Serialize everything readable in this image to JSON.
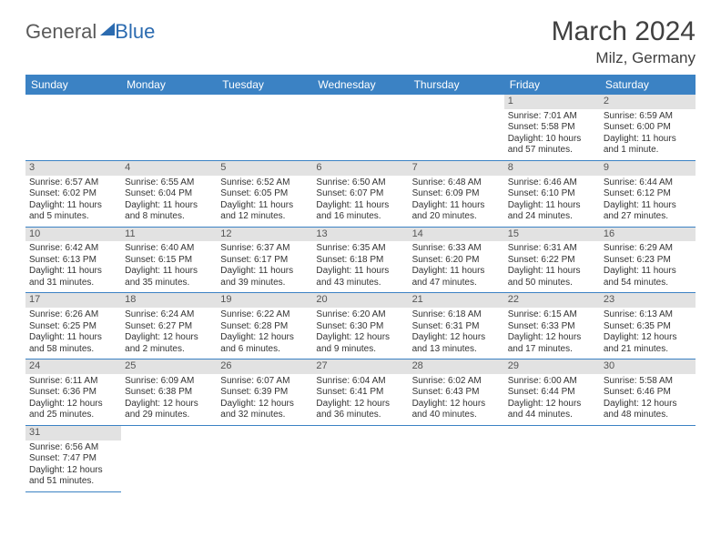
{
  "logo": {
    "part1": "General",
    "part2": "Blue"
  },
  "title": "March 2024",
  "subtitle": "Milz, Germany",
  "colors": {
    "header_bg": "#3b82c4",
    "header_text": "#ffffff",
    "daynum_bg": "#e2e2e2",
    "cell_border": "#3b82c4",
    "title_color": "#404040",
    "logo_gray": "#5a5a5a",
    "logo_blue": "#2b6bb0"
  },
  "days_of_week": [
    "Sunday",
    "Monday",
    "Tuesday",
    "Wednesday",
    "Thursday",
    "Friday",
    "Saturday"
  ],
  "first_weekday_index": 5,
  "num_days": 31,
  "cells": {
    "1": {
      "sunrise": "Sunrise: 7:01 AM",
      "sunset": "Sunset: 5:58 PM",
      "day1": "Daylight: 10 hours",
      "day2": "and 57 minutes."
    },
    "2": {
      "sunrise": "Sunrise: 6:59 AM",
      "sunset": "Sunset: 6:00 PM",
      "day1": "Daylight: 11 hours",
      "day2": "and 1 minute."
    },
    "3": {
      "sunrise": "Sunrise: 6:57 AM",
      "sunset": "Sunset: 6:02 PM",
      "day1": "Daylight: 11 hours",
      "day2": "and 5 minutes."
    },
    "4": {
      "sunrise": "Sunrise: 6:55 AM",
      "sunset": "Sunset: 6:04 PM",
      "day1": "Daylight: 11 hours",
      "day2": "and 8 minutes."
    },
    "5": {
      "sunrise": "Sunrise: 6:52 AM",
      "sunset": "Sunset: 6:05 PM",
      "day1": "Daylight: 11 hours",
      "day2": "and 12 minutes."
    },
    "6": {
      "sunrise": "Sunrise: 6:50 AM",
      "sunset": "Sunset: 6:07 PM",
      "day1": "Daylight: 11 hours",
      "day2": "and 16 minutes."
    },
    "7": {
      "sunrise": "Sunrise: 6:48 AM",
      "sunset": "Sunset: 6:09 PM",
      "day1": "Daylight: 11 hours",
      "day2": "and 20 minutes."
    },
    "8": {
      "sunrise": "Sunrise: 6:46 AM",
      "sunset": "Sunset: 6:10 PM",
      "day1": "Daylight: 11 hours",
      "day2": "and 24 minutes."
    },
    "9": {
      "sunrise": "Sunrise: 6:44 AM",
      "sunset": "Sunset: 6:12 PM",
      "day1": "Daylight: 11 hours",
      "day2": "and 27 minutes."
    },
    "10": {
      "sunrise": "Sunrise: 6:42 AM",
      "sunset": "Sunset: 6:13 PM",
      "day1": "Daylight: 11 hours",
      "day2": "and 31 minutes."
    },
    "11": {
      "sunrise": "Sunrise: 6:40 AM",
      "sunset": "Sunset: 6:15 PM",
      "day1": "Daylight: 11 hours",
      "day2": "and 35 minutes."
    },
    "12": {
      "sunrise": "Sunrise: 6:37 AM",
      "sunset": "Sunset: 6:17 PM",
      "day1": "Daylight: 11 hours",
      "day2": "and 39 minutes."
    },
    "13": {
      "sunrise": "Sunrise: 6:35 AM",
      "sunset": "Sunset: 6:18 PM",
      "day1": "Daylight: 11 hours",
      "day2": "and 43 minutes."
    },
    "14": {
      "sunrise": "Sunrise: 6:33 AM",
      "sunset": "Sunset: 6:20 PM",
      "day1": "Daylight: 11 hours",
      "day2": "and 47 minutes."
    },
    "15": {
      "sunrise": "Sunrise: 6:31 AM",
      "sunset": "Sunset: 6:22 PM",
      "day1": "Daylight: 11 hours",
      "day2": "and 50 minutes."
    },
    "16": {
      "sunrise": "Sunrise: 6:29 AM",
      "sunset": "Sunset: 6:23 PM",
      "day1": "Daylight: 11 hours",
      "day2": "and 54 minutes."
    },
    "17": {
      "sunrise": "Sunrise: 6:26 AM",
      "sunset": "Sunset: 6:25 PM",
      "day1": "Daylight: 11 hours",
      "day2": "and 58 minutes."
    },
    "18": {
      "sunrise": "Sunrise: 6:24 AM",
      "sunset": "Sunset: 6:27 PM",
      "day1": "Daylight: 12 hours",
      "day2": "and 2 minutes."
    },
    "19": {
      "sunrise": "Sunrise: 6:22 AM",
      "sunset": "Sunset: 6:28 PM",
      "day1": "Daylight: 12 hours",
      "day2": "and 6 minutes."
    },
    "20": {
      "sunrise": "Sunrise: 6:20 AM",
      "sunset": "Sunset: 6:30 PM",
      "day1": "Daylight: 12 hours",
      "day2": "and 9 minutes."
    },
    "21": {
      "sunrise": "Sunrise: 6:18 AM",
      "sunset": "Sunset: 6:31 PM",
      "day1": "Daylight: 12 hours",
      "day2": "and 13 minutes."
    },
    "22": {
      "sunrise": "Sunrise: 6:15 AM",
      "sunset": "Sunset: 6:33 PM",
      "day1": "Daylight: 12 hours",
      "day2": "and 17 minutes."
    },
    "23": {
      "sunrise": "Sunrise: 6:13 AM",
      "sunset": "Sunset: 6:35 PM",
      "day1": "Daylight: 12 hours",
      "day2": "and 21 minutes."
    },
    "24": {
      "sunrise": "Sunrise: 6:11 AM",
      "sunset": "Sunset: 6:36 PM",
      "day1": "Daylight: 12 hours",
      "day2": "and 25 minutes."
    },
    "25": {
      "sunrise": "Sunrise: 6:09 AM",
      "sunset": "Sunset: 6:38 PM",
      "day1": "Daylight: 12 hours",
      "day2": "and 29 minutes."
    },
    "26": {
      "sunrise": "Sunrise: 6:07 AM",
      "sunset": "Sunset: 6:39 PM",
      "day1": "Daylight: 12 hours",
      "day2": "and 32 minutes."
    },
    "27": {
      "sunrise": "Sunrise: 6:04 AM",
      "sunset": "Sunset: 6:41 PM",
      "day1": "Daylight: 12 hours",
      "day2": "and 36 minutes."
    },
    "28": {
      "sunrise": "Sunrise: 6:02 AM",
      "sunset": "Sunset: 6:43 PM",
      "day1": "Daylight: 12 hours",
      "day2": "and 40 minutes."
    },
    "29": {
      "sunrise": "Sunrise: 6:00 AM",
      "sunset": "Sunset: 6:44 PM",
      "day1": "Daylight: 12 hours",
      "day2": "and 44 minutes."
    },
    "30": {
      "sunrise": "Sunrise: 5:58 AM",
      "sunset": "Sunset: 6:46 PM",
      "day1": "Daylight: 12 hours",
      "day2": "and 48 minutes."
    },
    "31": {
      "sunrise": "Sunrise: 6:56 AM",
      "sunset": "Sunset: 7:47 PM",
      "day1": "Daylight: 12 hours",
      "day2": "and 51 minutes."
    }
  }
}
